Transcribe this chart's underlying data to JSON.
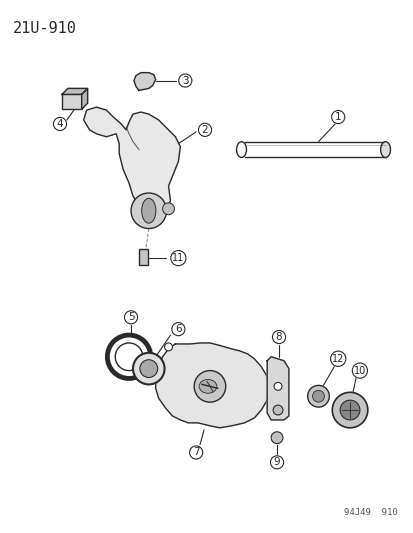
{
  "title": "21U-910",
  "footer": "94J49  910",
  "background_color": "#ffffff",
  "line_color": "#2a2a2a",
  "title_fontsize": 11,
  "label_fontsize": 7.5
}
